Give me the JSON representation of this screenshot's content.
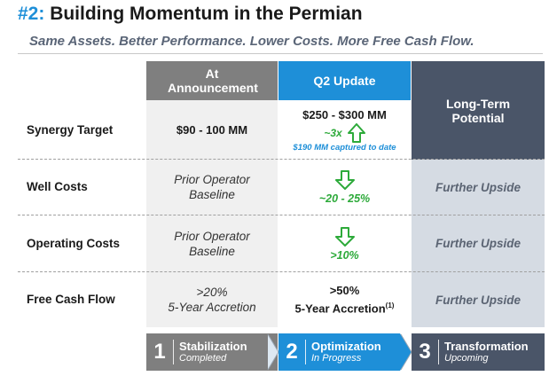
{
  "header": {
    "title_number": "#2:",
    "title_text": " Building Momentum in the Permian",
    "subtitle": "Same Assets. Better Performance. Lower Costs. More Free Cash Flow."
  },
  "columns": {
    "announcement": "At Announcement",
    "q2_update": "Q2 Update",
    "long_term": "Long-Term Potential"
  },
  "rows": [
    {
      "label": "Synergy Target",
      "announcement": "$90 - 100 MM",
      "q2_value": "$250 - $300 MM",
      "q2_multiple": "~3x",
      "q2_note": "$190 MM captured to date",
      "q2_arrow": "up-arrow-icon",
      "long_term": ""
    },
    {
      "label": "Well Costs",
      "announcement_line1": "Prior Operator",
      "announcement_line2": "Baseline",
      "q2_change": "~20 - 25%",
      "q2_arrow": "down-arrow-icon",
      "long_term": "Further Upside"
    },
    {
      "label": "Operating Costs",
      "announcement_line1": "Prior Operator",
      "announcement_line2": "Baseline",
      "q2_change": ">10%",
      "q2_arrow": "down-arrow-icon",
      "long_term": "Further Upside"
    },
    {
      "label": "Free Cash Flow",
      "announcement_line1": ">20%",
      "announcement_line2": "5-Year Accretion",
      "q2_line1": ">50%",
      "q2_line2": "5-Year Accretion",
      "q2_footnote": "(1)",
      "long_term": "Further Upside"
    }
  ],
  "steps": [
    {
      "number": "1",
      "title": "Stabilization",
      "status": "Completed"
    },
    {
      "number": "2",
      "title": "Optimization",
      "status": "In Progress"
    },
    {
      "number": "3",
      "title": "Transformation",
      "status": "Upcoming"
    }
  ],
  "colors": {
    "accent_blue": "#1e8fd8",
    "header_gray": "#7f7f7f",
    "slate": "#4a5568",
    "long_term_fill": "#d5dbe3",
    "green": "#2daa3a"
  }
}
